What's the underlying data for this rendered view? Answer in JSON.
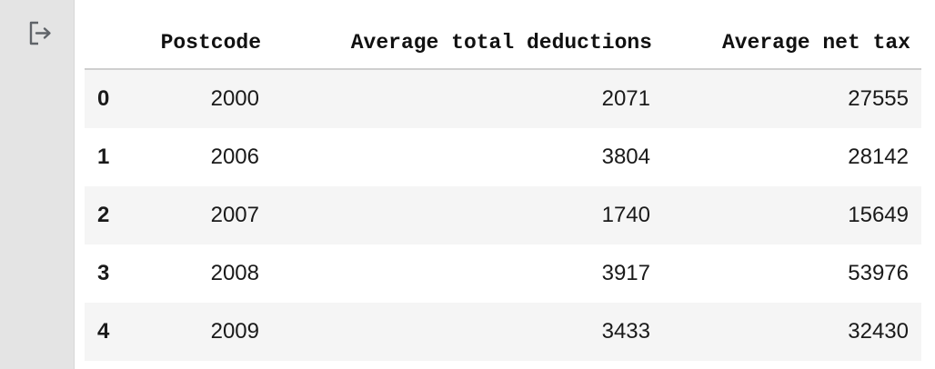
{
  "output_icon": "output-exit-icon",
  "table": {
    "columns": [
      "Postcode",
      "Average total deductions",
      "Average net tax"
    ],
    "rows": [
      {
        "index": "0",
        "postcode": "2000",
        "deductions": "2071",
        "net_tax": "27555"
      },
      {
        "index": "1",
        "postcode": "2006",
        "deductions": "3804",
        "net_tax": "28142"
      },
      {
        "index": "2",
        "postcode": "2007",
        "deductions": "1740",
        "net_tax": "15649"
      },
      {
        "index": "3",
        "postcode": "2008",
        "deductions": "3917",
        "net_tax": "53976"
      },
      {
        "index": "4",
        "postcode": "2009",
        "deductions": "3433",
        "net_tax": "32430"
      }
    ]
  }
}
